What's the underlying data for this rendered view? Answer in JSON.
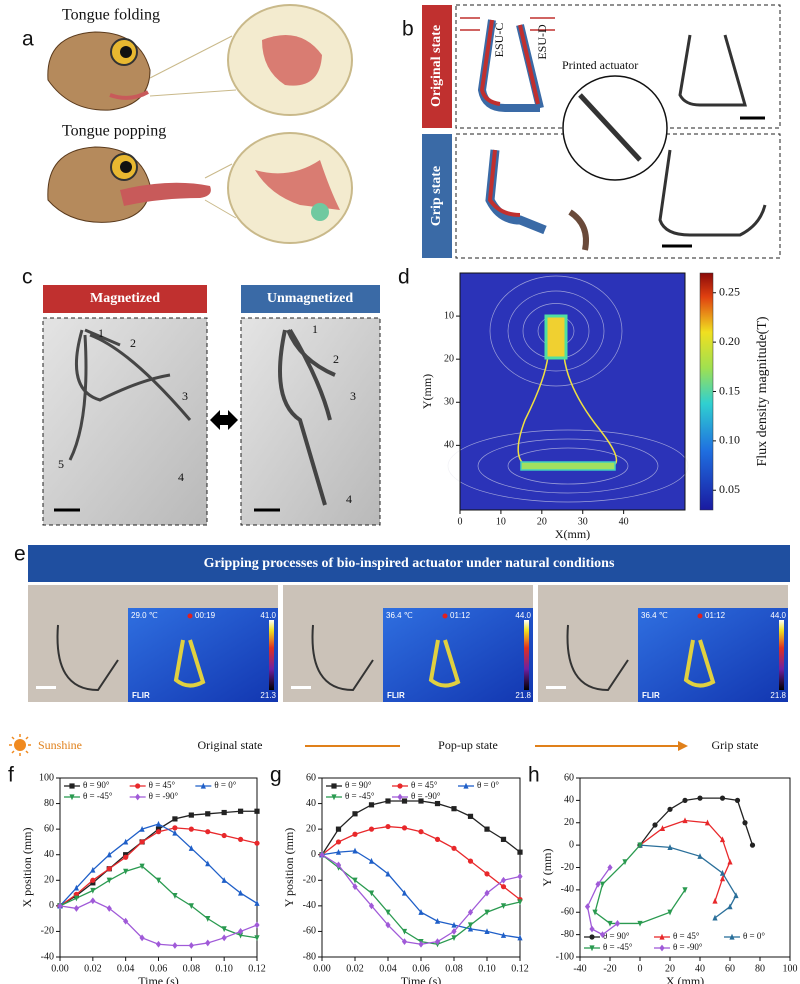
{
  "panels": {
    "a": {
      "label": "a",
      "top_caption": "Tongue folding",
      "bottom_caption": "Tongue popping"
    },
    "b": {
      "label": "b",
      "original_state": "Original state",
      "grip_state": "Grip state",
      "esu_c": "ESU-C",
      "esu_d": "ESU-D",
      "inset": "Printed actuator"
    },
    "c": {
      "label": "c",
      "left_title": "Magnetized",
      "right_title": "Unmagnetized",
      "left_marks": [
        "1",
        "2",
        "3",
        "4",
        "5"
      ],
      "right_marks": [
        "1",
        "2",
        "3",
        "4"
      ]
    },
    "e": {
      "label": "e",
      "banner": "Gripping processes of bio-inspired actuator under natural conditions",
      "frames": [
        {
          "temp": "29.0 ℃",
          "time": "00:19",
          "max": "41.0",
          "min": "21.3",
          "brand": "FLIR"
        },
        {
          "temp": "36.4 ℃",
          "time": "01:12",
          "max": "44.0",
          "min": "21.8",
          "brand": "FLIR"
        },
        {
          "temp": "36.4 ℃",
          "time": "01:12",
          "max": "44.0",
          "min": "21.8",
          "brand": "FLIR"
        }
      ],
      "condition": "Sunshine",
      "stages": [
        "Original state",
        "Pop-up state",
        "Grip state"
      ]
    }
  },
  "chart_data": [
    {
      "type": "field",
      "panel": "d",
      "x_label": "X(mm)",
      "y_label": "Y(mm)",
      "xlim": [
        0,
        55
      ],
      "ylim": [
        0,
        55
      ],
      "y_inverted": true,
      "xticks": [
        0,
        10,
        20,
        30,
        40
      ],
      "yticks": [
        10,
        20,
        30,
        40
      ],
      "colorbar": {
        "label": "Flux density magnitude(T)",
        "lim": [
          0.03,
          0.27
        ],
        "ticks": [
          0.05,
          {
            "value": 0.1,
            "label": "0.10"
          },
          0.15,
          {
            "value": 0.2,
            "label": "0.20"
          },
          0.25
        ]
      }
    },
    {
      "type": "line",
      "panel": "f",
      "x_label": "Time (s)",
      "y_label": "X position (mm)",
      "legend": "upper left",
      "xlim": [
        0,
        0.12
      ],
      "ylim": [
        -40,
        100
      ],
      "xticks": [
        {
          "value": 0,
          "label": "0.00"
        },
        0.02,
        0.04,
        0.06,
        0.08,
        {
          "value": 0.1,
          "label": "0.10"
        },
        0.12
      ],
      "yticks": [
        -40,
        -20,
        0,
        20,
        40,
        60,
        80,
        100
      ],
      "x": [
        0,
        0.01,
        0.02,
        0.03,
        0.04,
        0.05,
        0.06,
        0.07,
        0.08,
        0.09,
        0.1,
        0.11,
        0.12
      ],
      "series": [
        {
          "name": "θ = 90°",
          "color": "#222222",
          "marker": "square",
          "values": [
            0,
            8,
            18,
            29,
            40,
            50,
            60,
            68,
            71,
            72,
            73,
            74,
            74
          ]
        },
        {
          "name": "θ = 45°",
          "color": "#e8282b",
          "marker": "circle",
          "values": [
            0,
            9,
            20,
            29,
            38,
            50,
            58,
            61,
            60,
            58,
            55,
            52,
            49
          ]
        },
        {
          "name": "θ = 0°",
          "color": "#1f5fc8",
          "marker": "triangle",
          "values": [
            0,
            14,
            28,
            40,
            50,
            60,
            64,
            57,
            45,
            33,
            20,
            10,
            2
          ]
        },
        {
          "name": "θ = -45°",
          "color": "#2a9a50",
          "marker": "triangle-down",
          "values": [
            0,
            6,
            12,
            20,
            27,
            31,
            20,
            8,
            0,
            -10,
            -18,
            -23,
            -25
          ]
        },
        {
          "name": "θ = -90°",
          "color": "#a05ad8",
          "marker": "diamond",
          "values": [
            0,
            -2,
            4,
            -2,
            -12,
            -25,
            -30,
            -31,
            -31,
            -29,
            -25,
            -20,
            -15
          ]
        }
      ]
    },
    {
      "type": "line",
      "panel": "g",
      "x_label": "Time (s)",
      "y_label": "Y position (mm)",
      "legend": "upper left",
      "xlim": [
        0,
        0.12
      ],
      "ylim": [
        -80,
        60
      ],
      "xticks": [
        {
          "value": 0,
          "label": "0.00"
        },
        0.02,
        0.04,
        0.06,
        0.08,
        {
          "value": 0.1,
          "label": "0.10"
        },
        0.12
      ],
      "yticks": [
        -80,
        -60,
        -40,
        -20,
        0,
        20,
        40,
        60
      ],
      "x": [
        0,
        0.01,
        0.02,
        0.03,
        0.04,
        0.05,
        0.06,
        0.07,
        0.08,
        0.09,
        0.1,
        0.11,
        0.12
      ],
      "series": [
        {
          "name": "θ = 90°",
          "color": "#222222",
          "marker": "square",
          "values": [
            0,
            20,
            32,
            39,
            42,
            42,
            42,
            40,
            36,
            30,
            20,
            12,
            2
          ]
        },
        {
          "name": "θ = 45°",
          "color": "#e8282b",
          "marker": "circle",
          "values": [
            0,
            10,
            16,
            20,
            22,
            21,
            18,
            12,
            5,
            -5,
            -15,
            -25,
            -35
          ]
        },
        {
          "name": "θ = 0°",
          "color": "#1f5fc8",
          "marker": "triangle",
          "values": [
            0,
            2,
            3,
            -5,
            -15,
            -30,
            -45,
            -52,
            -55,
            -58,
            -60,
            -63,
            -65
          ]
        },
        {
          "name": "θ = -45°",
          "color": "#2a9a50",
          "marker": "triangle-down",
          "values": [
            0,
            -10,
            -20,
            -30,
            -45,
            -60,
            -68,
            -70,
            -65,
            -55,
            -45,
            -40,
            -37
          ]
        },
        {
          "name": "θ = -90°",
          "color": "#a05ad8",
          "marker": "diamond",
          "values": [
            0,
            -8,
            -25,
            -40,
            -55,
            -68,
            -70,
            -68,
            -60,
            -45,
            -30,
            -20,
            -17
          ]
        }
      ]
    },
    {
      "type": "line",
      "panel": "h",
      "x_label": "X (mm)",
      "y_label": "Y (mm)",
      "legend": "lower left",
      "xlim": [
        -40,
        100
      ],
      "ylim": [
        -100,
        60
      ],
      "xticks": [
        -40,
        -20,
        0,
        20,
        40,
        60,
        80,
        100
      ],
      "yticks": [
        -100,
        -80,
        -60,
        -40,
        -20,
        0,
        20,
        40,
        60
      ],
      "series": [
        {
          "name": "θ = 90°",
          "color": "#222222",
          "marker": "circle",
          "x": [
            0,
            10,
            20,
            30,
            40,
            55,
            65,
            70,
            75
          ],
          "values": [
            0,
            18,
            32,
            40,
            42,
            42,
            40,
            20,
            0
          ]
        },
        {
          "name": "θ = 45°",
          "color": "#e8282b",
          "marker": "triangle",
          "x": [
            0,
            15,
            30,
            45,
            55,
            60,
            55,
            50
          ],
          "values": [
            0,
            15,
            22,
            20,
            5,
            -15,
            -30,
            -50
          ]
        },
        {
          "name": "θ = 0°",
          "color": "#2a6f9a",
          "marker": "triangle",
          "x": [
            0,
            20,
            40,
            55,
            64,
            60,
            50
          ],
          "values": [
            0,
            -2,
            -10,
            -25,
            -45,
            -55,
            -65
          ]
        },
        {
          "name": "θ = -45°",
          "color": "#2a9a50",
          "marker": "triangle-down",
          "x": [
            0,
            -10,
            -25,
            -30,
            -20,
            0,
            20,
            30
          ],
          "values": [
            0,
            -15,
            -35,
            -60,
            -70,
            -70,
            -60,
            -40
          ]
        },
        {
          "name": "θ = -90°",
          "color": "#a05ad8",
          "marker": "diamond",
          "x": [
            -20,
            -28,
            -35,
            -32,
            -25,
            -15
          ],
          "values": [
            -20,
            -35,
            -55,
            -75,
            -80,
            -70
          ]
        }
      ]
    }
  ]
}
